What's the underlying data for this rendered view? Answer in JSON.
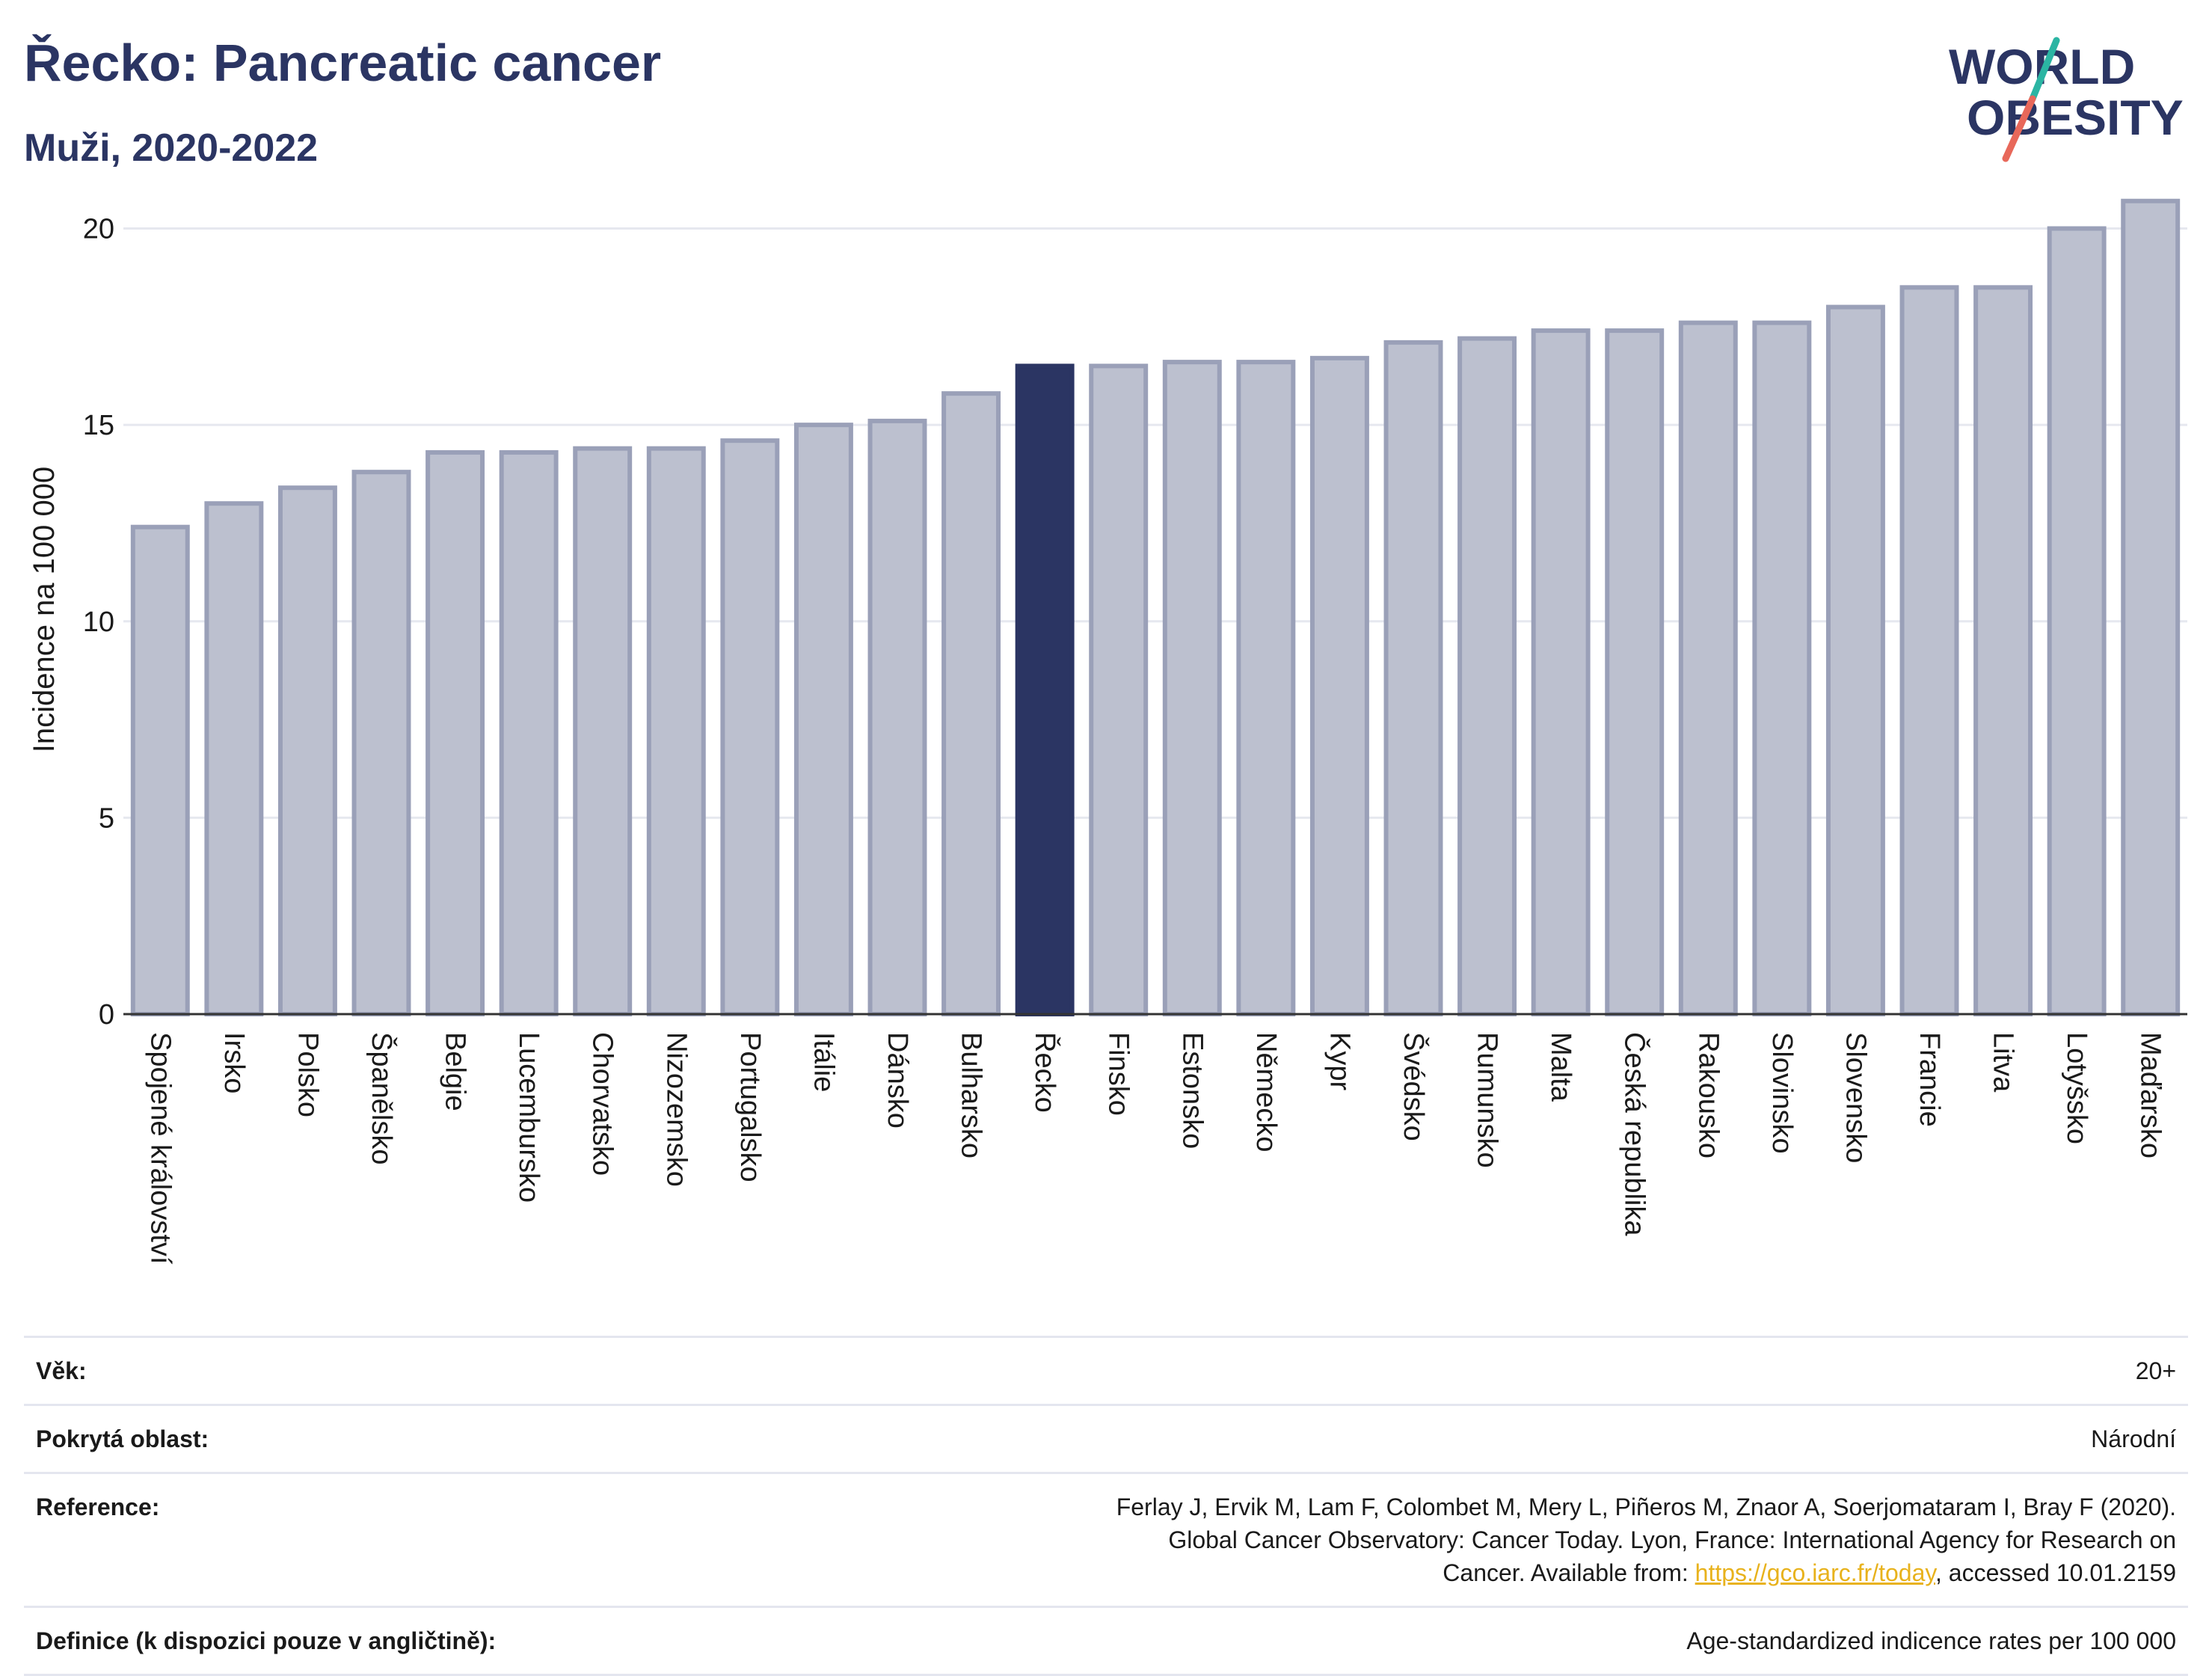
{
  "header": {
    "title": "Řecko: Pancreatic cancer",
    "subtitle": "Muži, 2020-2022"
  },
  "logo": {
    "line1": "WORLD",
    "line2": "OBESITY",
    "accent_colors": [
      "#2bb5a3",
      "#e8685a"
    ]
  },
  "colors": {
    "bar_default": "#bcc0cf",
    "bar_default_stroke": "#9aa0b8",
    "bar_highlight": "#2b3563",
    "grid": "#e6e8ef",
    "baseline": "#333333"
  },
  "chart_data": {
    "type": "bar",
    "title": "Řecko: Pancreatic cancer",
    "subtitle": "Muži, 2020-2022",
    "xlabel": "",
    "ylabel": "Incidence na 100 000",
    "ylim": [
      0,
      21
    ],
    "yticks": [
      0,
      5,
      10,
      15,
      20
    ],
    "grid": true,
    "highlight": "Řecko",
    "categories": [
      "Spojené království",
      "Irsko",
      "Polsko",
      "Španělsko",
      "Belgie",
      "Lucembursko",
      "Chorvatsko",
      "Nizozemsko",
      "Portugalsko",
      "Itálie",
      "Dánsko",
      "Bulharsko",
      "Řecko",
      "Finsko",
      "Estonsko",
      "Německo",
      "Kypr",
      "Švédsko",
      "Rumunsko",
      "Malta",
      "Česká republika",
      "Rakousko",
      "Slovinsko",
      "Slovensko",
      "Francie",
      "Litva",
      "Lotyšsko",
      "Maďarsko"
    ],
    "values": [
      12.4,
      13.0,
      13.4,
      13.8,
      14.3,
      14.3,
      14.4,
      14.4,
      14.6,
      15.0,
      15.1,
      15.8,
      16.5,
      16.5,
      16.6,
      16.6,
      16.7,
      17.1,
      17.2,
      17.4,
      17.4,
      17.6,
      17.6,
      18.0,
      18.5,
      18.5,
      20.0,
      20.7
    ]
  },
  "info": {
    "age_label": "Věk:",
    "age_value": "20+",
    "coverage_label": "Pokrytá oblast:",
    "coverage_value": "Národní",
    "reference_label": "Reference:",
    "reference_text_1": "Ferlay J, Ervik M, Lam F, Colombet M, Mery L, Piñeros M, Znaor A, Soerjomataram I, Bray F (2020). Global Cancer Observatory: Cancer Today. Lyon, France: International Agency for Research on Cancer. Available from: ",
    "reference_link": "https://gco.iarc.fr/today",
    "reference_text_2": ", accessed 10.01.2159",
    "definition_label": "Definice (k dispozici pouze v angličtině):",
    "definition_value": "Age-standardized indicence rates per 100 000"
  }
}
